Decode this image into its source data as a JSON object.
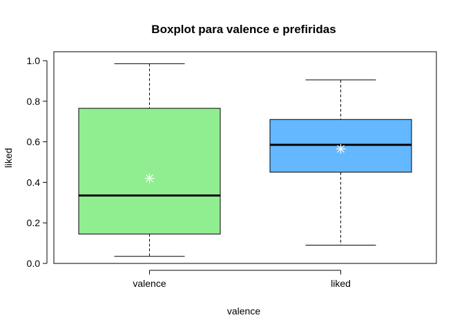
{
  "chart_data": {
    "type": "boxplot",
    "title": "Boxplot para  valence e prefiridas",
    "xlabel": "valence",
    "ylabel": "liked",
    "ylim": [
      0,
      1
    ],
    "yticks": [
      "0.0",
      "0.2",
      "0.4",
      "0.6",
      "0.8",
      "1.0"
    ],
    "grid": false,
    "boxes": [
      {
        "category": "valence",
        "min": 0.035,
        "q1": 0.145,
        "median": 0.335,
        "q3": 0.765,
        "max": 0.985,
        "mean": 0.42,
        "color": "#90EE90"
      },
      {
        "category": "liked",
        "min": 0.09,
        "q1": 0.45,
        "median": 0.585,
        "q3": 0.71,
        "max": 0.905,
        "mean": 0.565,
        "color": "#63B8FF"
      }
    ]
  }
}
